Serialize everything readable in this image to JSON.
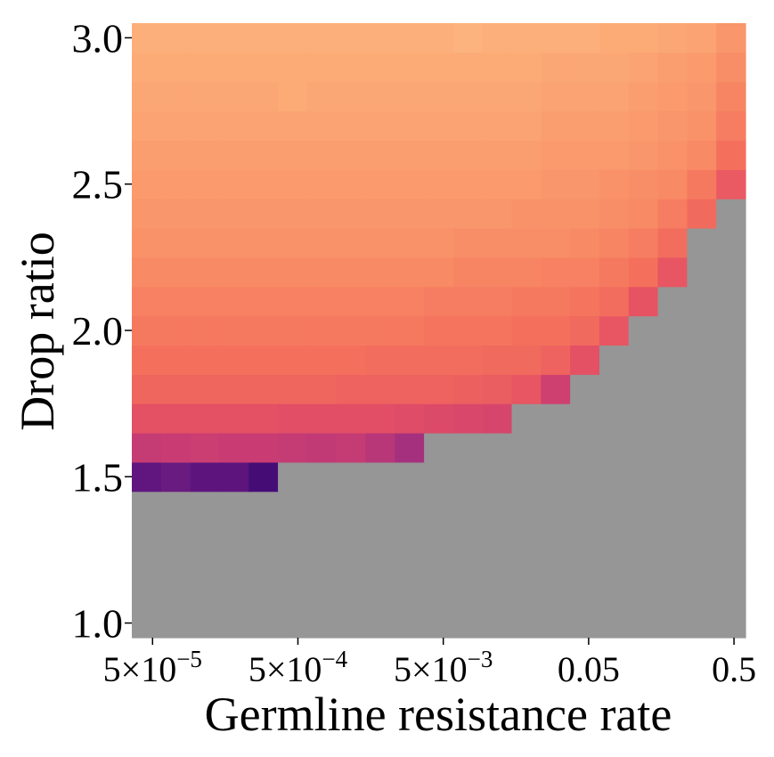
{
  "chart_data": {
    "type": "heatmap",
    "xlabel": "Germline resistance rate",
    "ylabel": "Drop ratio",
    "x_scale": "log",
    "x_range": [
      3.6e-05,
      0.6
    ],
    "x_ticks": [
      {
        "value": 5e-05,
        "mantissa": "5",
        "times": "×",
        "base": "10",
        "exp": "−5"
      },
      {
        "value": 0.0005,
        "mantissa": "5",
        "times": "×",
        "base": "10",
        "exp": "−4"
      },
      {
        "value": 0.005,
        "mantissa": "5",
        "times": "×",
        "base": "10",
        "exp": "−3"
      },
      {
        "value": 0.05,
        "text": "0.05"
      },
      {
        "value": 0.5,
        "text": "0.5"
      }
    ],
    "y_range": [
      0.95,
      3.05
    ],
    "y_ticks": [
      {
        "value": 1.0,
        "text": "1.0"
      },
      {
        "value": 1.5,
        "text": "1.5"
      },
      {
        "value": 2.0,
        "text": "2.0"
      },
      {
        "value": 2.5,
        "text": "2.5"
      },
      {
        "value": 3.0,
        "text": "3.0"
      }
    ],
    "colormap": "magma",
    "color_range": [
      0,
      1
    ],
    "masked_color": "#969696",
    "y_values": [
      1.0,
      1.1,
      1.2,
      1.3,
      1.4,
      1.5,
      1.6,
      1.7,
      1.8,
      1.9,
      2.0,
      2.1,
      2.2,
      2.3,
      2.4,
      2.5,
      2.6,
      2.7,
      2.8,
      2.9,
      3.0
    ],
    "x_values": [
      5e-05,
      8.4e-05,
      0.00014,
      0.00024,
      0.00041,
      0.00069,
      0.0012,
      0.002,
      0.0033,
      0.0056,
      0.0094,
      0.016,
      0.027,
      0.045,
      0.076,
      0.13,
      0.22,
      0.36,
      0.6,
      1.0,
      1.7
    ],
    "values": [
      [
        null,
        null,
        null,
        null,
        null,
        null,
        null,
        null,
        null,
        null,
        null,
        null,
        null,
        null,
        null,
        null,
        null,
        null,
        null,
        null,
        null
      ],
      [
        null,
        null,
        null,
        null,
        null,
        null,
        null,
        null,
        null,
        null,
        null,
        null,
        null,
        null,
        null,
        null,
        null,
        null,
        null,
        null,
        null
      ],
      [
        null,
        null,
        null,
        null,
        null,
        null,
        null,
        null,
        null,
        null,
        null,
        null,
        null,
        null,
        null,
        null,
        null,
        null,
        null,
        null,
        null
      ],
      [
        null,
        null,
        null,
        null,
        null,
        null,
        null,
        null,
        null,
        null,
        null,
        null,
        null,
        null,
        null,
        null,
        null,
        null,
        null,
        null,
        null
      ],
      [
        null,
        null,
        null,
        null,
        null,
        null,
        null,
        null,
        null,
        null,
        null,
        null,
        null,
        null,
        null,
        null,
        null,
        null,
        null,
        null,
        null
      ],
      [
        0.2,
        0.25,
        0.18,
        0.18,
        0.0,
        null,
        null,
        null,
        null,
        null,
        null,
        null,
        null,
        null,
        null,
        null,
        null,
        null,
        null,
        null,
        null
      ],
      [
        0.57,
        0.58,
        0.59,
        0.58,
        0.58,
        0.57,
        0.56,
        0.57,
        0.53,
        0.48,
        null,
        null,
        null,
        null,
        null,
        null,
        null,
        null,
        null,
        null,
        null
      ],
      [
        0.68,
        0.68,
        0.68,
        0.68,
        0.68,
        0.67,
        0.67,
        0.67,
        0.67,
        0.66,
        0.65,
        0.64,
        0.63,
        null,
        null,
        null,
        null,
        null,
        null,
        null,
        null
      ],
      [
        0.75,
        0.75,
        0.75,
        0.75,
        0.75,
        0.75,
        0.75,
        0.74,
        0.74,
        0.74,
        0.74,
        0.73,
        0.72,
        0.7,
        0.6,
        null,
        null,
        null,
        null,
        null,
        null
      ],
      [
        0.78,
        0.78,
        0.78,
        0.78,
        0.78,
        0.78,
        0.78,
        0.78,
        0.77,
        0.77,
        0.77,
        0.77,
        0.76,
        0.76,
        0.74,
        0.68,
        null,
        null,
        null,
        null,
        null
      ],
      [
        0.8,
        0.8,
        0.8,
        0.8,
        0.8,
        0.8,
        0.8,
        0.8,
        0.8,
        0.8,
        0.79,
        0.79,
        0.79,
        0.78,
        0.78,
        0.76,
        0.7,
        null,
        null,
        null,
        null
      ],
      [
        0.82,
        0.82,
        0.82,
        0.82,
        0.82,
        0.82,
        0.82,
        0.82,
        0.82,
        0.82,
        0.81,
        0.81,
        0.81,
        0.8,
        0.8,
        0.79,
        0.77,
        0.69,
        null,
        null,
        null
      ],
      [
        0.84,
        0.84,
        0.84,
        0.84,
        0.84,
        0.84,
        0.84,
        0.84,
        0.84,
        0.84,
        0.84,
        0.83,
        0.83,
        0.83,
        0.82,
        0.82,
        0.8,
        0.78,
        0.7,
        null,
        null
      ],
      [
        0.86,
        0.86,
        0.86,
        0.86,
        0.86,
        0.86,
        0.86,
        0.86,
        0.86,
        0.86,
        0.86,
        0.85,
        0.85,
        0.85,
        0.85,
        0.84,
        0.83,
        0.81,
        0.77,
        null,
        null
      ],
      [
        0.87,
        0.87,
        0.87,
        0.87,
        0.87,
        0.87,
        0.87,
        0.87,
        0.87,
        0.87,
        0.87,
        0.87,
        0.87,
        0.86,
        0.86,
        0.86,
        0.85,
        0.84,
        0.81,
        0.76,
        null
      ],
      [
        0.88,
        0.88,
        0.88,
        0.88,
        0.88,
        0.88,
        0.88,
        0.88,
        0.88,
        0.88,
        0.88,
        0.88,
        0.88,
        0.88,
        0.87,
        0.87,
        0.86,
        0.85,
        0.84,
        0.8,
        0.71
      ],
      [
        0.89,
        0.89,
        0.89,
        0.89,
        0.89,
        0.89,
        0.89,
        0.89,
        0.89,
        0.89,
        0.89,
        0.89,
        0.89,
        0.89,
        0.88,
        0.88,
        0.88,
        0.87,
        0.86,
        0.84,
        0.78
      ],
      [
        0.9,
        0.9,
        0.9,
        0.9,
        0.9,
        0.9,
        0.9,
        0.9,
        0.9,
        0.9,
        0.9,
        0.9,
        0.9,
        0.9,
        0.89,
        0.89,
        0.89,
        0.88,
        0.87,
        0.86,
        0.81
      ],
      [
        0.91,
        0.91,
        0.91,
        0.91,
        0.91,
        0.92,
        0.91,
        0.91,
        0.91,
        0.91,
        0.91,
        0.91,
        0.91,
        0.91,
        0.9,
        0.9,
        0.9,
        0.89,
        0.88,
        0.87,
        0.83
      ],
      [
        0.92,
        0.92,
        0.92,
        0.92,
        0.92,
        0.92,
        0.92,
        0.92,
        0.92,
        0.92,
        0.92,
        0.92,
        0.92,
        0.92,
        0.91,
        0.91,
        0.91,
        0.9,
        0.89,
        0.88,
        0.85
      ],
      [
        0.93,
        0.93,
        0.93,
        0.93,
        0.93,
        0.93,
        0.93,
        0.93,
        0.93,
        0.93,
        0.93,
        0.94,
        0.93,
        0.93,
        0.93,
        0.93,
        0.92,
        0.92,
        0.91,
        0.9,
        0.87
      ]
    ]
  }
}
